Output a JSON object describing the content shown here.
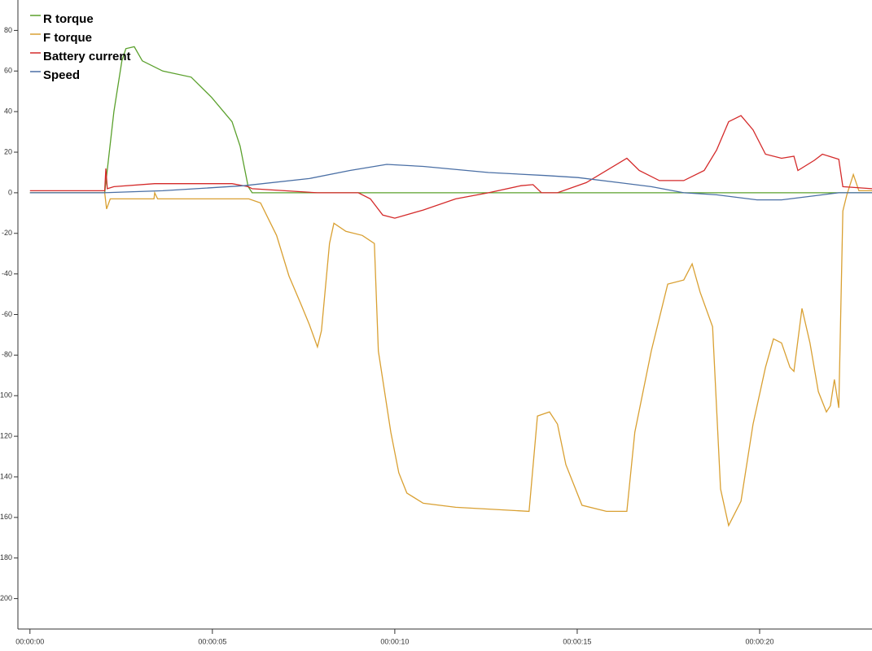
{
  "chart_data": {
    "type": "line",
    "xlim": [
      -0.33,
      23.08
    ],
    "ylim": [
      -215,
      95
    ],
    "xticks": [
      {
        "value": 0,
        "label": "00:00:00"
      },
      {
        "value": 5,
        "label": "00:00:05"
      },
      {
        "value": 10,
        "label": "00:00:10"
      },
      {
        "value": 15,
        "label": "00:00:15"
      },
      {
        "value": 20,
        "label": "00:00:20"
      }
    ],
    "yticks": [
      80,
      60,
      40,
      20,
      0,
      -20,
      -40,
      -60,
      -80,
      -100,
      -120,
      -140,
      -160,
      -180,
      -200
    ],
    "legend": "top-left",
    "series": [
      {
        "name": "R torque",
        "color": "#5aa02c",
        "x": [
          0,
          2.05,
          2.08,
          2.3,
          2.52,
          2.63,
          2.86,
          3.08,
          3.64,
          4.42,
          4.98,
          5.54,
          5.76,
          5.98,
          6.09,
          23.08
        ],
        "values": [
          0,
          0,
          5,
          40,
          65,
          71,
          72,
          65,
          60,
          57,
          47,
          35,
          23,
          3,
          0,
          0
        ]
      },
      {
        "name": "F torque",
        "color": "#d9a032",
        "x": [
          0,
          2.05,
          2.1,
          2.2,
          3.4,
          3.42,
          3.5,
          6.0,
          6.32,
          6.76,
          7.1,
          7.43,
          7.66,
          7.88,
          7.99,
          8.21,
          8.33,
          8.66,
          9.11,
          9.44,
          9.55,
          9.89,
          10.11,
          10.33,
          10.78,
          11.67,
          13.68,
          13.91,
          14.24,
          14.46,
          14.69,
          15.13,
          15.8,
          16.36,
          16.58,
          17.03,
          17.48,
          17.92,
          18.15,
          18.37,
          18.71,
          18.93,
          19.15,
          19.49,
          19.82,
          20.16,
          20.38,
          20.6,
          20.83,
          20.94,
          21.16,
          21.38,
          21.61,
          21.83,
          21.94,
          22.05,
          22.17,
          22.28,
          22.39,
          22.57,
          22.72,
          23.08
        ],
        "values": [
          0,
          0,
          -8,
          -3,
          -3,
          0,
          -3,
          -3,
          -5,
          -21,
          -41,
          -55,
          -65,
          -76,
          -68,
          -25,
          -15,
          -19,
          -21,
          -25,
          -78,
          -118,
          -138,
          -148,
          -153,
          -155,
          -157,
          -110,
          -108,
          -114,
          -134,
          -154,
          -157,
          -157,
          -118,
          -78,
          -45,
          -43,
          -35,
          -49,
          -66,
          -146,
          -164,
          -152,
          -114,
          -86,
          -72,
          -74,
          -86,
          -88,
          -57,
          -74,
          -98,
          -108,
          -105,
          -92,
          -106,
          -9,
          -1,
          9,
          1,
          1
        ]
      },
      {
        "name": "Battery current",
        "color": "#d42a2a",
        "x": [
          0,
          2.05,
          2.08,
          2.12,
          2.3,
          3.42,
          5.54,
          5.98,
          6.09,
          7.88,
          9.0,
          9.33,
          9.67,
          10.0,
          10.78,
          11.67,
          12.57,
          13.46,
          13.79,
          14.02,
          14.46,
          15.25,
          16.36,
          16.7,
          17.25,
          17.92,
          18.48,
          18.82,
          19.15,
          19.49,
          19.82,
          20.16,
          20.6,
          20.94,
          21.05,
          21.5,
          21.72,
          22.17,
          22.28,
          23.08
        ],
        "values": [
          1,
          1,
          12,
          2,
          3,
          4.5,
          4.5,
          3,
          2,
          0,
          0,
          -3,
          -11,
          -12.5,
          -8.5,
          -3,
          0,
          3.5,
          4,
          0,
          0,
          5,
          17,
          11,
          6,
          6,
          11,
          21,
          35,
          38,
          31,
          19,
          17,
          18,
          11,
          16,
          19,
          16.5,
          3,
          2
        ]
      },
      {
        "name": "Speed",
        "color": "#4a6fa5",
        "x": [
          0,
          2.0,
          3.64,
          5.87,
          7.66,
          8.77,
          9.78,
          10.78,
          12.57,
          14.13,
          15.02,
          16.14,
          17.03,
          17.92,
          18.82,
          19.93,
          20.6,
          21.5,
          22.17,
          23.08
        ],
        "values": [
          0,
          0,
          1,
          3.5,
          7,
          11,
          14,
          13,
          10,
          8.5,
          7.5,
          5,
          3,
          0,
          -1,
          -3.5,
          -3.5,
          -1.5,
          0,
          0
        ]
      }
    ]
  }
}
